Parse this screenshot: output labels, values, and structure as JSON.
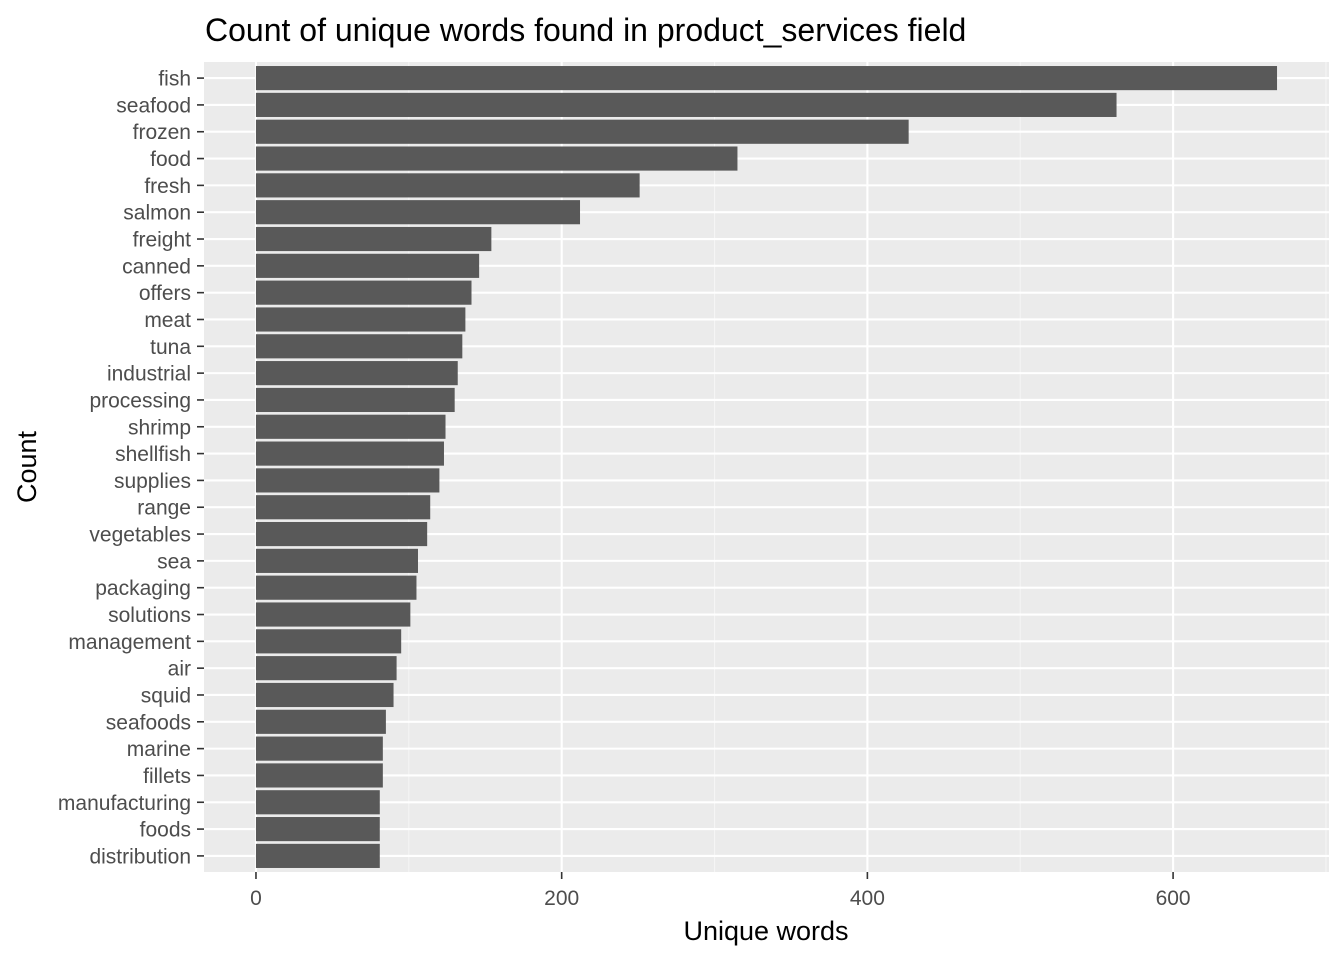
{
  "chart_data": {
    "type": "bar",
    "orientation": "horizontal",
    "title": "Count of unique words found in product_services field",
    "xlabel": "Unique words",
    "ylabel": "Count",
    "categories": [
      "fish",
      "seafood",
      "frozen",
      "food",
      "fresh",
      "salmon",
      "freight",
      "canned",
      "offers",
      "meat",
      "tuna",
      "industrial",
      "processing",
      "shrimp",
      "shellfish",
      "supplies",
      "range",
      "vegetables",
      "sea",
      "packaging",
      "solutions",
      "management",
      "air",
      "squid",
      "seafoods",
      "marine",
      "fillets",
      "manufacturing",
      "foods",
      "distribution"
    ],
    "values": [
      668,
      563,
      427,
      315,
      251,
      212,
      154,
      146,
      141,
      137,
      135,
      132,
      130,
      124,
      123,
      120,
      114,
      112,
      106,
      105,
      101,
      95,
      92,
      90,
      85,
      83,
      83,
      81,
      81,
      81
    ],
    "xlim": [
      -34,
      702
    ],
    "xticks": [
      0,
      200,
      400,
      600
    ],
    "grid": true,
    "legend": "none",
    "colors": {
      "bar": "#595959",
      "panel": "#ebebeb",
      "grid_major": "#ffffff",
      "grid_minor": "#f5f5f5",
      "tick_text": "#4d4d4d",
      "tick_mark": "#333333"
    }
  }
}
